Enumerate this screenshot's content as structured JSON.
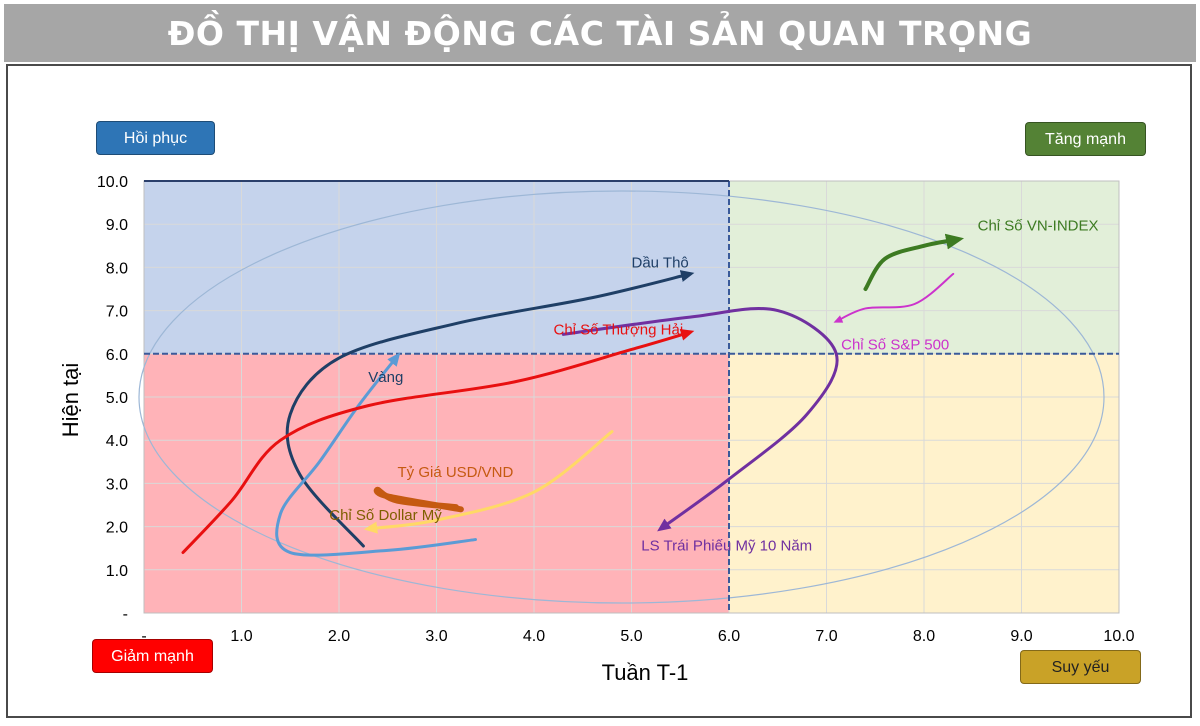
{
  "title": "ĐỒ THỊ VẬN ĐỘNG CÁC TÀI SẢN QUAN TRỌNG",
  "quadrants": {
    "top_left": "Hồi phục",
    "top_right": "Tăng mạnh",
    "bottom_left": "Giảm mạnh",
    "bottom_right": "Suy yếu"
  },
  "colors": {
    "recovery": "#2e75b6",
    "strong": "#548235",
    "declining": "#ff0000",
    "weak": "#c9a227",
    "quad_top_left": "#c5d3ec",
    "quad_top_right": "#e2efd9",
    "quad_bottom_left": "#ffb3b8",
    "quad_bottom_right": "#fff2cc"
  },
  "chart_data": {
    "type": "line",
    "xlabel": "Tuần T-1",
    "ylabel": "Hiện tại",
    "xlim": [
      0,
      10
    ],
    "ylim": [
      0,
      10
    ],
    "x_ticks": [
      "-",
      "1.0",
      "2.0",
      "3.0",
      "4.0",
      "5.0",
      "6.0",
      "7.0",
      "8.0",
      "9.0",
      "10.0"
    ],
    "y_ticks": [
      "-",
      "1.0",
      "2.0",
      "3.0",
      "4.0",
      "5.0",
      "6.0",
      "7.0",
      "8.0",
      "9.0",
      "10.0"
    ],
    "threshold": {
      "x": 6,
      "y": 6
    },
    "grid": true,
    "series": [
      {
        "name": "Dầu Thô",
        "color": "#1f3f66",
        "width": 3,
        "label_pos": [
          5.0,
          8.0
        ],
        "label_color": "#1f3f66",
        "points": [
          [
            2.25,
            1.55
          ],
          [
            1.6,
            3.2
          ],
          [
            1.5,
            4.6
          ],
          [
            2.0,
            5.9
          ],
          [
            3.2,
            6.7
          ],
          [
            4.6,
            7.3
          ],
          [
            5.6,
            7.85
          ]
        ]
      },
      {
        "name": "Vàng",
        "color": "#5b9bd5",
        "width": 3,
        "label_pos": [
          2.3,
          5.35
        ],
        "label_color": "#1f3f66",
        "points": [
          [
            3.4,
            1.7
          ],
          [
            2.5,
            1.45
          ],
          [
            1.5,
            1.4
          ],
          [
            1.4,
            2.3
          ],
          [
            1.8,
            3.5
          ],
          [
            2.2,
            4.8
          ],
          [
            2.6,
            5.95
          ]
        ]
      },
      {
        "name": "Chỉ Số Thượng Hải",
        "color": "#e81010",
        "width": 3,
        "label_pos": [
          4.2,
          6.45
        ],
        "label_color": "#e81010",
        "points": [
          [
            0.4,
            1.4
          ],
          [
            0.9,
            2.6
          ],
          [
            1.4,
            4.0
          ],
          [
            2.3,
            4.8
          ],
          [
            3.8,
            5.35
          ],
          [
            5.0,
            6.1
          ],
          [
            5.6,
            6.5
          ]
        ]
      },
      {
        "name": "Chỉ Số Dollar Mỹ",
        "color": "#ffd966",
        "width": 3,
        "label_pos": [
          1.9,
          2.15
        ],
        "label_color": "#7f5f00",
        "points": [
          [
            4.8,
            4.2
          ],
          [
            4.0,
            2.8
          ],
          [
            3.0,
            2.15
          ],
          [
            2.3,
            1.95
          ]
        ]
      },
      {
        "name": "Tỷ Giá USD/VND",
        "color": "#c55a11",
        "width": 6,
        "label_pos": [
          2.6,
          3.15
        ],
        "label_color": "#c55a11",
        "points": [
          [
            3.2,
            2.45
          ],
          [
            2.6,
            2.6
          ],
          [
            2.4,
            2.85
          ],
          [
            2.5,
            2.7
          ],
          [
            3.25,
            2.4
          ]
        ]
      },
      {
        "name": "LS Trái Phiếu Mỹ 10 Năm",
        "color": "#7030a0",
        "width": 3,
        "label_pos": [
          5.1,
          1.45
        ],
        "label_color": "#7030a0",
        "points": [
          [
            4.3,
            6.45
          ],
          [
            5.6,
            6.85
          ],
          [
            6.5,
            7.0
          ],
          [
            7.1,
            6.0
          ],
          [
            6.8,
            4.6
          ],
          [
            6.0,
            3.1
          ],
          [
            5.3,
            1.95
          ]
        ]
      },
      {
        "name": "Chỉ Số VN-INDEX",
        "color": "#3d7b22",
        "width": 4,
        "label_pos": [
          8.55,
          8.85
        ],
        "label_color": "#3d7b22",
        "points": [
          [
            7.4,
            7.5
          ],
          [
            7.6,
            8.2
          ],
          [
            8.0,
            8.5
          ],
          [
            8.35,
            8.65
          ]
        ]
      },
      {
        "name": "Chỉ Số S&P 500",
        "color": "#cc33cc",
        "width": 2,
        "label_pos": [
          7.15,
          6.1
        ],
        "label_color": "#cc33cc",
        "points": [
          [
            8.3,
            7.85
          ],
          [
            7.9,
            7.15
          ],
          [
            7.4,
            7.05
          ],
          [
            7.1,
            6.75
          ]
        ]
      }
    ]
  }
}
